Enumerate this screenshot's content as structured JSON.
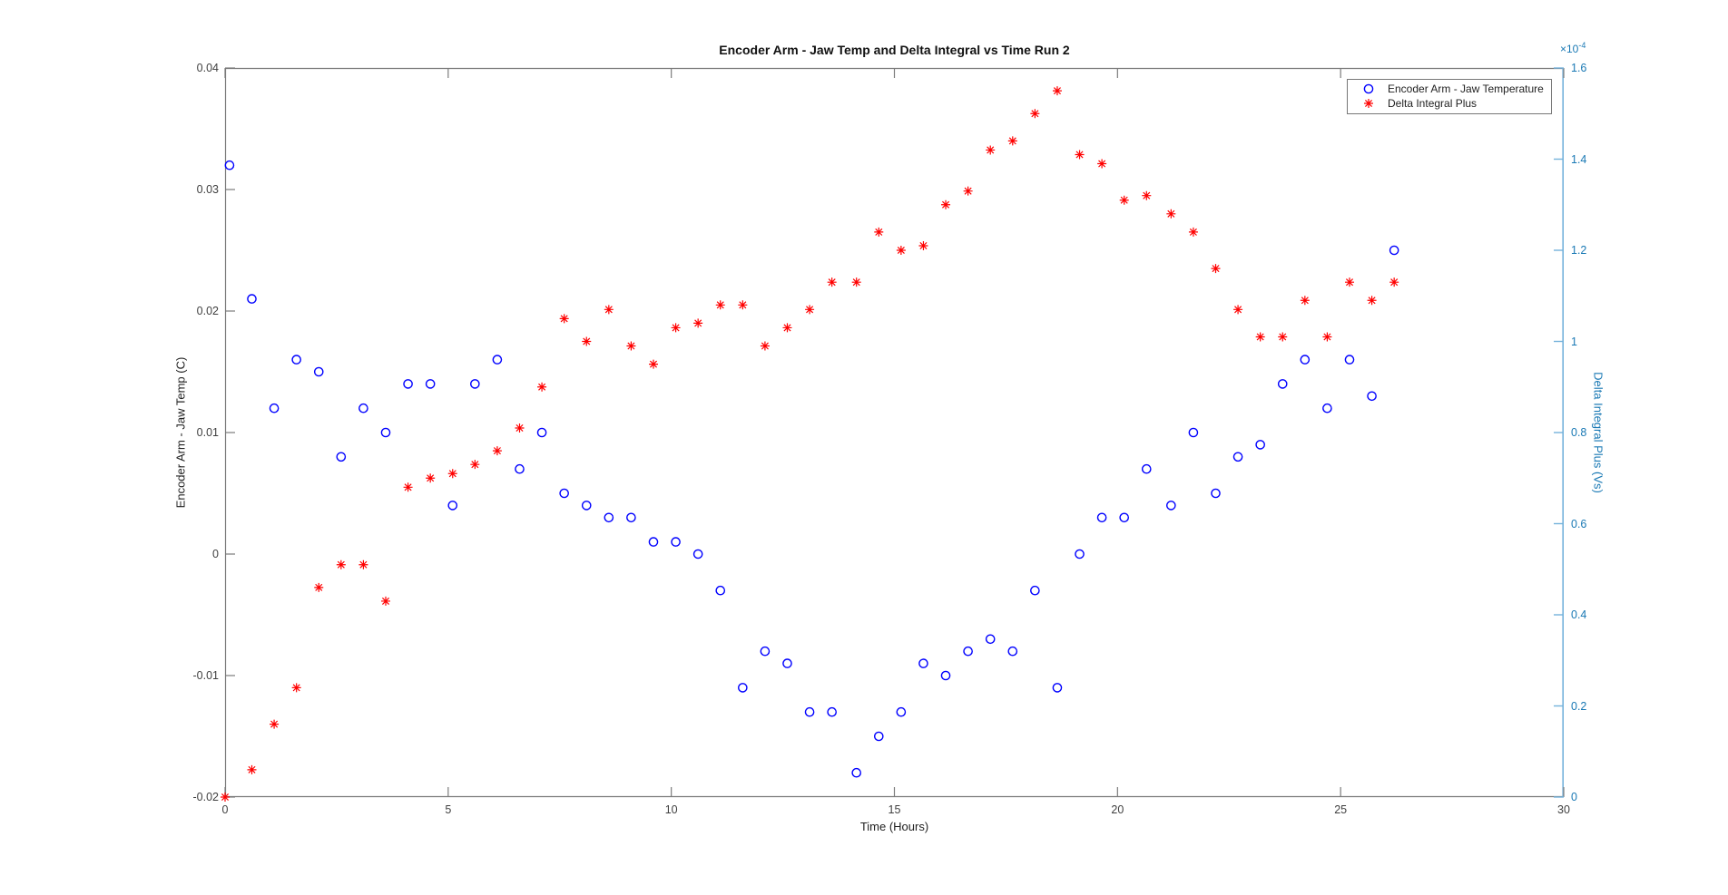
{
  "figure": {
    "background": "#ffffff"
  },
  "chart_data": {
    "type": "scatter",
    "title": "Encoder Arm - Jaw Temp and Delta Integral vs Time Run 2",
    "xlabel": "Time (Hours)",
    "xlim": [
      0,
      30
    ],
    "x_ticks": [
      0,
      5,
      10,
      15,
      20,
      25,
      30
    ],
    "x_tick_labels": [
      "0",
      "5",
      "10",
      "15",
      "20",
      "25",
      "30"
    ],
    "axis_color": "#7b7b7b",
    "tick_label_color": "#3f3f3f",
    "grid": "off",
    "legend_position": "top-right",
    "left_axis": {
      "label": "Encoder Arm - Jaw Temp (C)",
      "range": [
        -0.02,
        0.04
      ],
      "ticks": [
        -0.02,
        -0.01,
        0,
        0.01,
        0.02,
        0.03,
        0.04
      ],
      "tick_labels": [
        "-0.02",
        "-0.01",
        "0",
        "0.01",
        "0.02",
        "0.03",
        "0.04"
      ]
    },
    "right_axis": {
      "label": "Delta Integral Plus (Vs)",
      "range": [
        0,
        1.6
      ],
      "unit_scale": "1e-4",
      "exponent_base": "×10",
      "exponent_power": "-4",
      "ticks": [
        0,
        0.2,
        0.4,
        0.6,
        0.8,
        1,
        1.2,
        1.4,
        1.6
      ],
      "tick_labels": [
        "0",
        "0.2",
        "0.4",
        "0.6",
        "0.8",
        "1",
        "1.2",
        "1.4",
        "1.6"
      ],
      "axis_color": "#74b2db",
      "text_color": "#1878b4"
    },
    "series": [
      {
        "name": "Encoder Arm - Jaw Temperature",
        "marker": "circle",
        "color": "#0000ff",
        "axis": "left",
        "x": [
          0.1,
          0.6,
          1.1,
          1.6,
          2.1,
          2.6,
          3.1,
          3.6,
          4.1,
          4.6,
          5.1,
          5.6,
          6.1,
          6.6,
          7.1,
          7.6,
          8.1,
          8.6,
          9.1,
          9.6,
          10.1,
          10.6,
          11.1,
          11.6,
          12.1,
          12.6,
          13.1,
          13.6,
          14.15,
          14.65,
          15.15,
          15.65,
          16.15,
          16.65,
          17.15,
          17.65,
          18.15,
          18.65,
          19.15,
          19.65,
          20.15,
          20.65,
          21.2,
          21.7,
          22.2,
          22.7,
          23.2,
          23.7,
          24.2,
          24.7,
          25.2,
          25.7,
          26.2
        ],
        "y": [
          0.032,
          0.021,
          0.012,
          0.016,
          0.015,
          0.008,
          0.012,
          0.01,
          0.014,
          0.014,
          0.004,
          0.014,
          0.016,
          0.007,
          0.01,
          0.005,
          0.004,
          0.003,
          0.003,
          0.001,
          0.001,
          0,
          -0.003,
          -0.011,
          -0.008,
          -0.009,
          -0.013,
          -0.013,
          -0.018,
          -0.015,
          -0.013,
          -0.009,
          -0.01,
          -0.008,
          -0.007,
          -0.008,
          -0.003,
          -0.011,
          0,
          0.003,
          0.003,
          0.007,
          0.004,
          0.01,
          0.005,
          0.008,
          0.009,
          0.014,
          0.016,
          0.012,
          0.016,
          0.013,
          0.025
        ]
      },
      {
        "name": "Delta Integral Plus",
        "marker": "asterisk",
        "color": "#ff0000",
        "axis": "right",
        "x": [
          0,
          0.6,
          1.1,
          1.6,
          2.1,
          2.6,
          3.1,
          3.6,
          4.1,
          4.6,
          5.1,
          5.6,
          6.1,
          6.6,
          7.1,
          7.6,
          8.1,
          8.6,
          9.1,
          9.6,
          10.1,
          10.6,
          11.1,
          11.6,
          12.1,
          12.6,
          13.1,
          13.6,
          14.15,
          14.65,
          15.15,
          15.65,
          16.15,
          16.65,
          17.15,
          17.65,
          18.15,
          18.65,
          19.15,
          19.65,
          20.15,
          20.65,
          21.2,
          21.7,
          22.2,
          22.7,
          23.2,
          23.7,
          24.2,
          24.7,
          25.2,
          25.7,
          26.2
        ],
        "y": [
          0,
          0.06,
          0.16,
          0.24,
          0.46,
          0.51,
          0.51,
          0.43,
          0.68,
          0.7,
          0.71,
          0.73,
          0.76,
          0.81,
          0.9,
          1.05,
          1.0,
          1.07,
          0.99,
          0.95,
          1.03,
          1.04,
          1.08,
          1.08,
          0.99,
          1.03,
          1.07,
          1.13,
          1.13,
          1.24,
          1.2,
          1.21,
          1.3,
          1.33,
          1.42,
          1.44,
          1.5,
          1.55,
          1.41,
          1.39,
          1.31,
          1.32,
          1.28,
          1.24,
          1.16,
          1.07,
          1.01,
          1.01,
          1.09,
          1.01,
          1.13,
          1.09,
          1.13
        ]
      }
    ]
  }
}
